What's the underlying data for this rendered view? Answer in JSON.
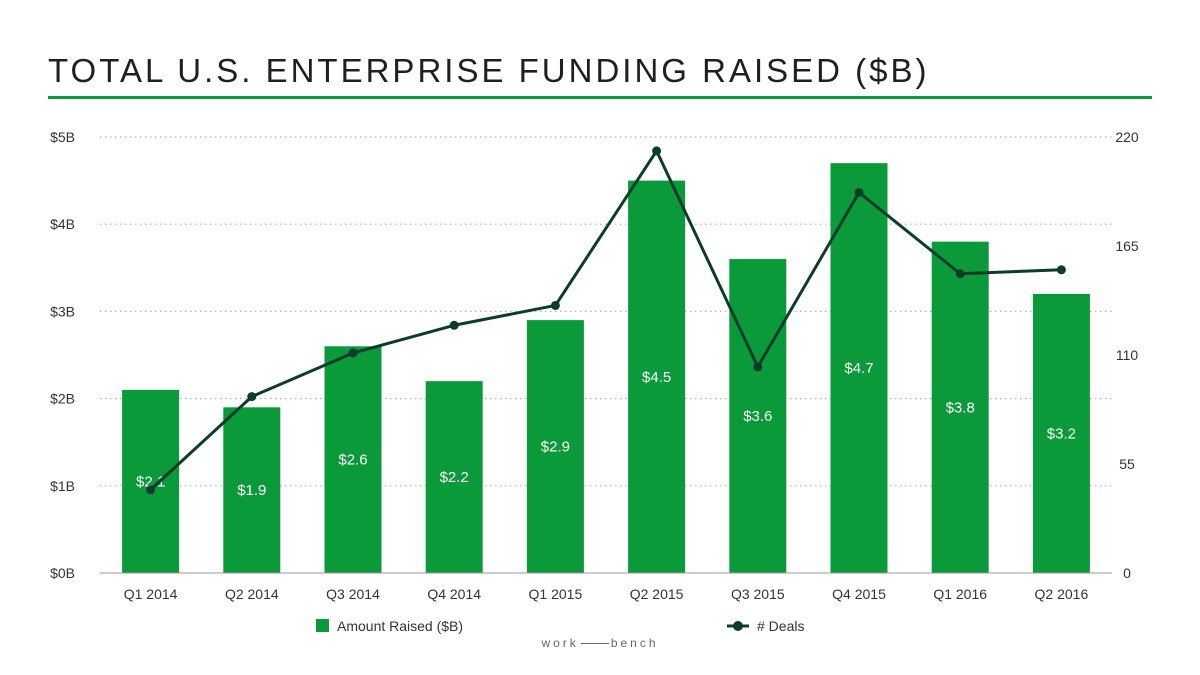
{
  "title": "TOTAL U.S. ENTERPRISE FUNDING RAISED ($B)",
  "brand": {
    "left": "work",
    "right": "bench"
  },
  "colors": {
    "bar": "#0a9a3a",
    "line": "#0d3b2c",
    "accent_rule": "#0a9a3a",
    "grid": "#b5b5b5",
    "text": "#333333"
  },
  "chart_data": {
    "type": "bar",
    "categories": [
      "Q1 2014",
      "Q2 2014",
      "Q3 2014",
      "Q4 2014",
      "Q1 2015",
      "Q2 2015",
      "Q3 2015",
      "Q4 2015",
      "Q1 2016",
      "Q2 2016"
    ],
    "series": [
      {
        "name": "Amount Raised ($B)",
        "type": "bar",
        "axis": "left",
        "values": [
          2.1,
          1.9,
          2.6,
          2.2,
          2.9,
          4.5,
          3.6,
          4.7,
          3.8,
          3.2
        ],
        "data_labels": [
          "$2.1",
          "$1.9",
          "$2.6",
          "$2.2",
          "$2.9",
          "$4.5",
          "$3.6",
          "$4.7",
          "$3.8",
          "$3.2"
        ]
      },
      {
        "name": "# Deals",
        "type": "line",
        "axis": "right",
        "values": [
          42,
          89,
          111,
          125,
          135,
          213,
          104,
          192,
          151,
          153
        ]
      }
    ],
    "y_left": {
      "ticks": [
        0,
        1,
        2,
        3,
        4,
        5
      ],
      "tick_labels": [
        "$0B",
        "$1B",
        "$2B",
        "$3B",
        "$4B",
        "$5B"
      ],
      "range": [
        0,
        5
      ]
    },
    "y_right": {
      "ticks": [
        0,
        55,
        110,
        165,
        220
      ],
      "tick_labels": [
        "0",
        "55",
        "110",
        "165",
        "220"
      ],
      "range": [
        0,
        220
      ]
    },
    "grid": "dotted horizontal",
    "legend_placement": "bottom"
  }
}
